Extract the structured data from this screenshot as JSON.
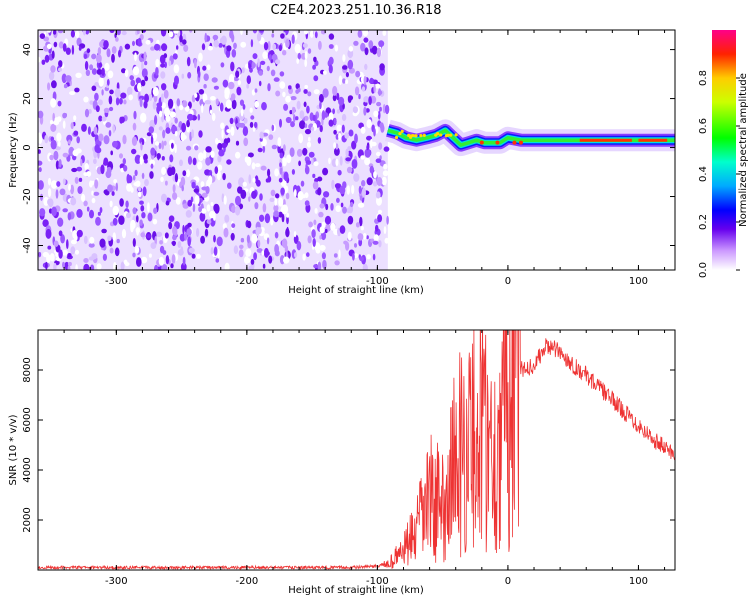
{
  "title": "C2E4.2023.251.10.36.R18",
  "chart_data": [
    {
      "type": "heatmap",
      "xlabel": "Height of straight line (km)",
      "ylabel": "Frequency (Hz)",
      "xlim": [
        -360,
        128
      ],
      "ylim": [
        -50,
        48
      ],
      "xticks": [
        -300,
        -200,
        -100,
        0,
        100
      ],
      "yticks": [
        -40,
        -20,
        0,
        20,
        40
      ],
      "noise_region_x": [
        -360,
        -92
      ],
      "signal_trace": {
        "x": [
          -92,
          -85,
          -78,
          -70,
          -62,
          -55,
          -48,
          -42,
          -36,
          -30,
          -24,
          -18,
          -12,
          -6,
          0,
          10,
          20,
          40,
          60,
          80,
          100,
          120,
          128
        ],
        "y": [
          7,
          6,
          4,
          3,
          4,
          5,
          7,
          4,
          1,
          2,
          3,
          2,
          2,
          2,
          4,
          3,
          3,
          3,
          3,
          3,
          3,
          3,
          3
        ]
      },
      "colorbar": {
        "label": "Normalized spectral amplitude",
        "ticks": [
          "0.0",
          "0.2",
          "0.4",
          "0.6",
          "0.8"
        ],
        "range": [
          0,
          1
        ]
      }
    },
    {
      "type": "line",
      "xlabel": "Height of straight line (km)",
      "ylabel": "SNR (10 * v/v)",
      "xlim": [
        -360,
        128
      ],
      "ylim": [
        0,
        9600
      ],
      "xticks": [
        -300,
        -200,
        -100,
        0,
        100
      ],
      "yticks": [
        2000,
        4000,
        6000,
        8000
      ],
      "series": [
        {
          "color": "#ee3333",
          "x": [
            -360,
            -300,
            -200,
            -120,
            -100,
            -90,
            -80,
            -70,
            -60,
            -50,
            -40,
            -30,
            -20,
            -10,
            0,
            10,
            20,
            30,
            40,
            50,
            60,
            70,
            80,
            90,
            100,
            110,
            120,
            128
          ],
          "y": [
            100,
            100,
            100,
            100,
            150,
            300,
            800,
            1500,
            3000,
            2500,
            4500,
            5000,
            6000,
            4500,
            7000,
            8000,
            8200,
            9000,
            8700,
            8200,
            7800,
            7300,
            6800,
            6300,
            5800,
            5300,
            4900,
            4600
          ]
        }
      ]
    }
  ]
}
